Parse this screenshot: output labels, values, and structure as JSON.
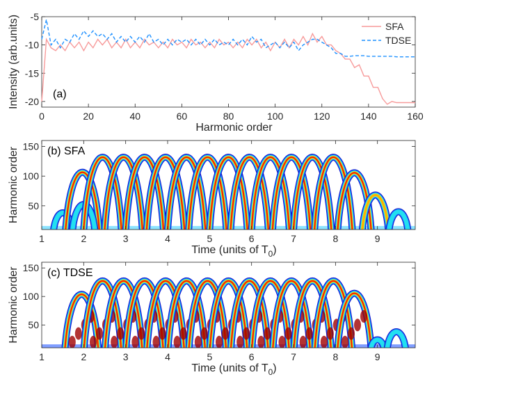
{
  "chart_data": [
    {
      "type": "line",
      "panel_label": "(a)",
      "xlabel": "Harmonic order",
      "ylabel": "Intensity (arb.units)",
      "xlim": [
        0,
        160
      ],
      "ylim": [
        -21,
        -5
      ],
      "xticks": [
        0,
        20,
        40,
        60,
        80,
        100,
        120,
        140,
        160
      ],
      "yticks": [
        -20,
        -15,
        -10,
        -5
      ],
      "legend_placement": "top-right",
      "x": [
        0,
        2,
        4,
        6,
        8,
        10,
        12,
        14,
        16,
        18,
        20,
        22,
        24,
        26,
        28,
        30,
        32,
        34,
        36,
        38,
        40,
        42,
        44,
        46,
        48,
        50,
        52,
        54,
        56,
        58,
        60,
        62,
        64,
        66,
        68,
        70,
        72,
        74,
        76,
        78,
        80,
        82,
        84,
        86,
        88,
        90,
        92,
        94,
        96,
        98,
        100,
        102,
        104,
        106,
        108,
        110,
        112,
        114,
        116,
        118,
        120,
        122,
        124,
        126,
        128,
        130,
        132,
        134,
        136,
        138,
        140,
        142,
        144,
        146,
        148,
        150,
        152,
        154,
        156,
        158,
        160
      ],
      "series": [
        {
          "name": "SFA",
          "color": "#f79a9a",
          "style": "solid",
          "values": [
            -20,
            -9,
            -10.5,
            -11,
            -10,
            -11,
            -9.5,
            -10.5,
            -9.5,
            -11,
            -9.5,
            -10.5,
            -9,
            -10,
            -9,
            -10.5,
            -9.5,
            -10.5,
            -9,
            -10.5,
            -9.5,
            -10.5,
            -9,
            -10,
            -9.5,
            -10.5,
            -9.5,
            -10.5,
            -9,
            -10,
            -9.5,
            -10.5,
            -9,
            -10,
            -9.5,
            -10.5,
            -9.5,
            -10.5,
            -9,
            -10,
            -9.5,
            -10.5,
            -9.5,
            -10.5,
            -9,
            -10,
            -9,
            -10.5,
            -9.5,
            -11,
            -9.5,
            -10.5,
            -9,
            -10.5,
            -9,
            -10,
            -8.5,
            -10,
            -8,
            -9.5,
            -8.5,
            -10,
            -10,
            -11,
            -11.5,
            -12.5,
            -12.5,
            -14,
            -13.5,
            -15.5,
            -15.5,
            -17.5,
            -17.5,
            -19.5,
            -20.5,
            -20,
            -20.2,
            -20.2,
            -20.2,
            -20.2,
            -20.2
          ]
        },
        {
          "name": "TDSE",
          "color": "#1e90ff",
          "style": "dashed",
          "values": [
            -9,
            -5.5,
            -10,
            -9,
            -10.5,
            -9,
            -9.5,
            -8,
            -9,
            -7.5,
            -8.5,
            -7.5,
            -8.5,
            -8,
            -9,
            -8,
            -9.5,
            -8.5,
            -9.5,
            -8.5,
            -9.5,
            -8.5,
            -9.5,
            -8,
            -9.5,
            -9,
            -10,
            -9,
            -10,
            -9,
            -9.5,
            -9,
            -10,
            -9,
            -10,
            -9,
            -10,
            -9,
            -10,
            -9.5,
            -10,
            -9,
            -10,
            -9,
            -10,
            -8.5,
            -9.5,
            -9,
            -10.5,
            -10,
            -9.5,
            -10.5,
            -9.5,
            -10.5,
            -9.5,
            -11,
            -10,
            -9.5,
            -9,
            -9,
            -9.5,
            -10,
            -10.5,
            -11.5,
            -11.5,
            -12,
            -12,
            -11.9,
            -11.9,
            -11.9,
            -12,
            -12,
            -12,
            -12,
            -12,
            -12,
            -12.1,
            -12.1,
            -12.1,
            -12.1,
            -12.1
          ]
        }
      ]
    },
    {
      "type": "heatmap",
      "panel_label": "(b) SFA",
      "xlabel": "Time (units of T",
      "xlabel_sub": "0",
      "xlabel_close": ")",
      "ylabel": "Harmonic order",
      "xlim": [
        1,
        9.9
      ],
      "ylim": [
        10,
        160
      ],
      "xticks": [
        1,
        2,
        3,
        4,
        5,
        6,
        7,
        8,
        9
      ],
      "yticks": [
        50,
        100,
        150
      ],
      "colormap": "jet",
      "arches": [
        {
          "t": 1.5,
          "peak": 40
        },
        {
          "t": 1.97,
          "peak": 113
        },
        {
          "t": 2.0,
          "peak": 55
        },
        {
          "t": 2.45,
          "peak": 140
        },
        {
          "t": 2.95,
          "peak": 140
        },
        {
          "t": 3.45,
          "peak": 140
        },
        {
          "t": 3.95,
          "peak": 140
        },
        {
          "t": 4.45,
          "peak": 140
        },
        {
          "t": 4.95,
          "peak": 140
        },
        {
          "t": 5.45,
          "peak": 140
        },
        {
          "t": 5.95,
          "peak": 140
        },
        {
          "t": 6.45,
          "peak": 140
        },
        {
          "t": 6.95,
          "peak": 140
        },
        {
          "t": 7.45,
          "peak": 140
        },
        {
          "t": 7.95,
          "peak": 140
        },
        {
          "t": 8.45,
          "peak": 112
        },
        {
          "t": 8.95,
          "peak": 72
        },
        {
          "t": 9.5,
          "peak": 42
        }
      ]
    },
    {
      "type": "heatmap",
      "panel_label": "(c) TDSE",
      "xlabel": "Time (units of T",
      "xlabel_sub": "0",
      "xlabel_close": ")",
      "ylabel": "Harmonic order",
      "xlim": [
        1,
        9.9
      ],
      "ylim": [
        10,
        160
      ],
      "xticks": [
        1,
        2,
        3,
        4,
        5,
        6,
        7,
        8,
        9
      ],
      "yticks": [
        50,
        100,
        150
      ],
      "colormap": "jet",
      "arches": [
        {
          "t": 1.95,
          "peak": 110
        },
        {
          "t": 2.45,
          "peak": 135
        },
        {
          "t": 2.95,
          "peak": 135
        },
        {
          "t": 3.45,
          "peak": 135
        },
        {
          "t": 3.95,
          "peak": 135
        },
        {
          "t": 4.45,
          "peak": 135
        },
        {
          "t": 4.95,
          "peak": 135
        },
        {
          "t": 5.45,
          "peak": 135
        },
        {
          "t": 5.95,
          "peak": 135
        },
        {
          "t": 6.45,
          "peak": 135
        },
        {
          "t": 6.95,
          "peak": 135
        },
        {
          "t": 7.45,
          "peak": 135
        },
        {
          "t": 7.95,
          "peak": 135
        },
        {
          "t": 8.45,
          "peak": 112
        },
        {
          "t": 9.0,
          "peak": 25
        },
        {
          "t": 9.45,
          "peak": 40
        }
      ]
    }
  ]
}
